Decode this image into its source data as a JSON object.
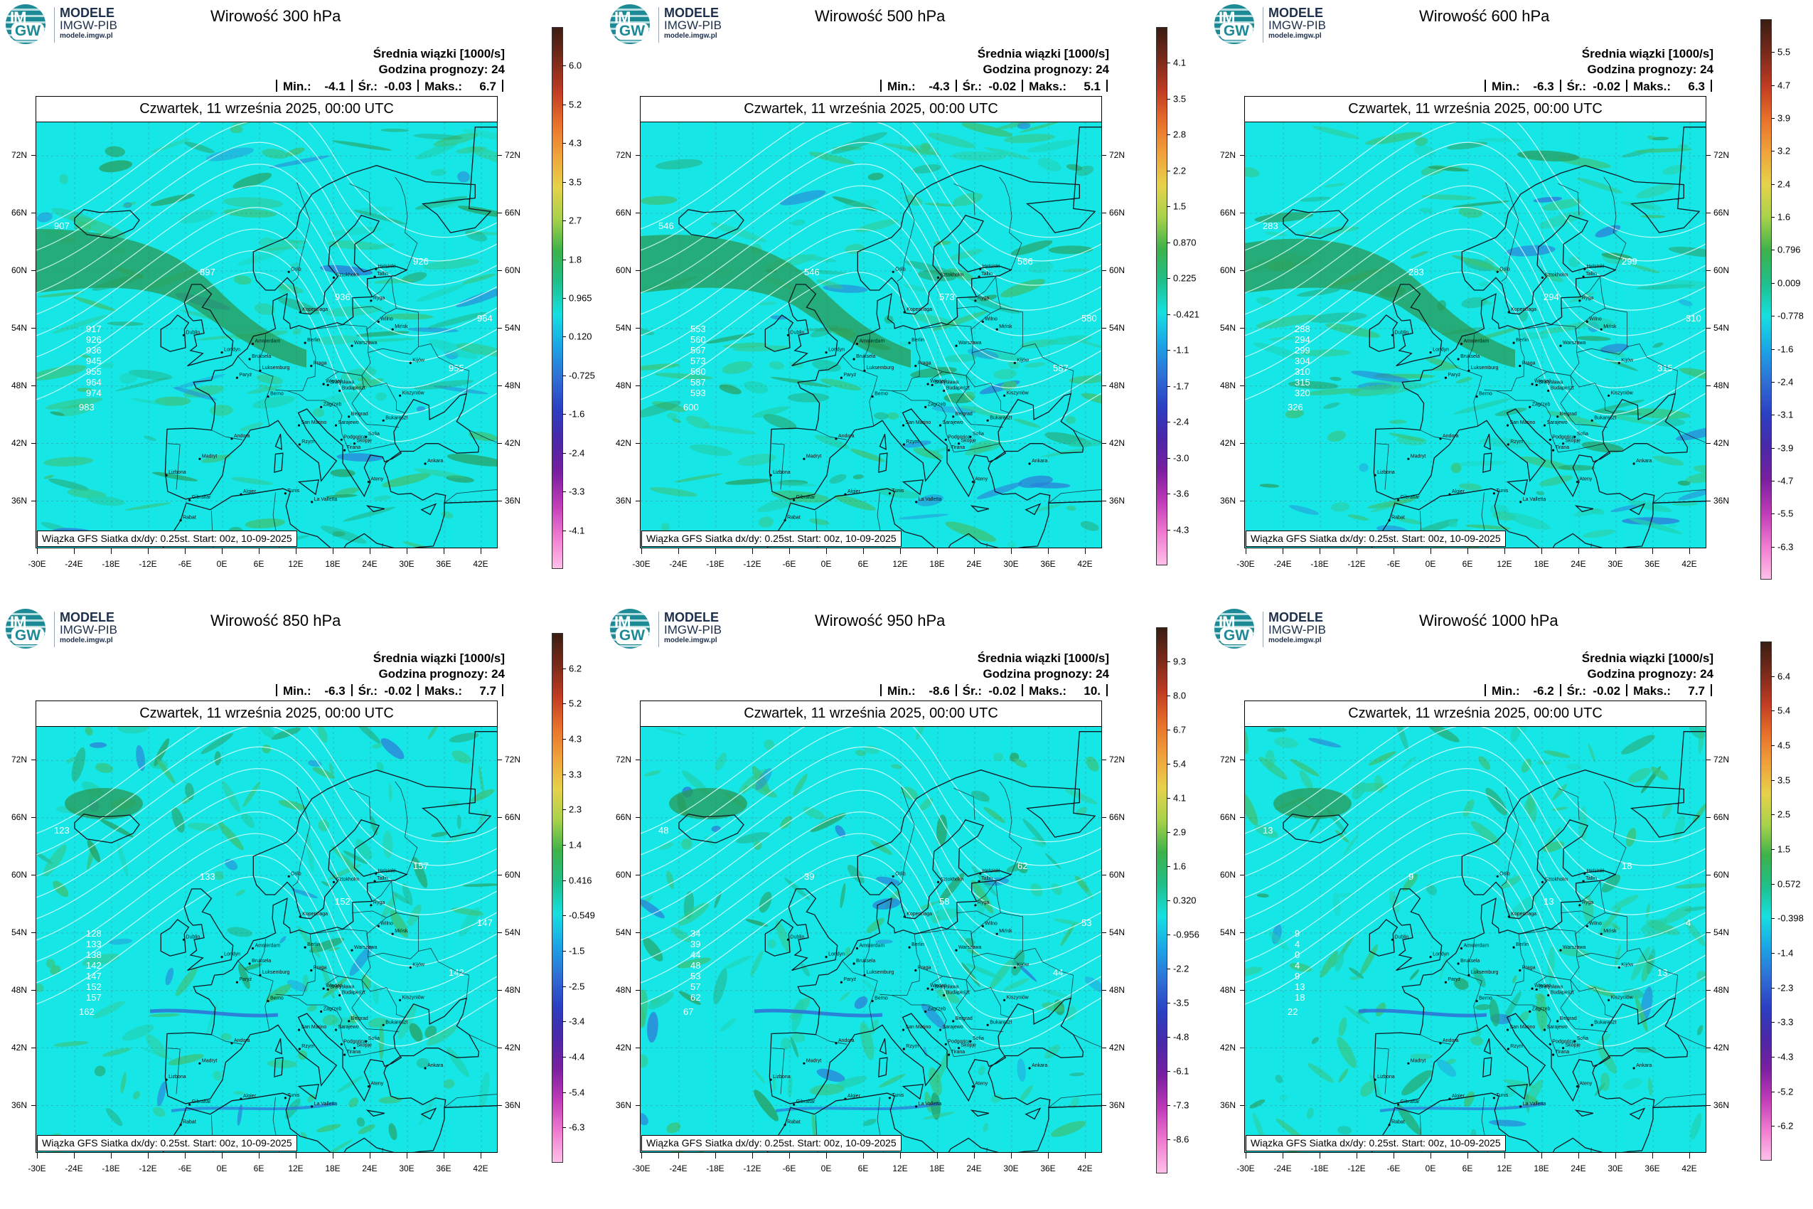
{
  "logo": {
    "mark_top": "IM",
    "mark_bottom": "GW",
    "line1": "MODELE",
    "line2": "IMGW-PIB",
    "line3": "modele.imgw.pl"
  },
  "common": {
    "avg_label": "Średnia wiązki [1000/s]",
    "hour_label": "Godzina prognozy: 24",
    "min_label": "Min.:",
    "mean_label": "Śr.:",
    "max_label": "Maks.:",
    "date": "Czwartek, 11 września 2025, 00:00 UTC",
    "info": "Wiązka GFS Siatka dx/dy: 0.25st. Start: 00z, 10-09-2025",
    "lat_labels": [
      "72N",
      "66N",
      "60N",
      "54N",
      "48N",
      "42N",
      "36N"
    ],
    "lon_labels": [
      "-30E",
      "-24E",
      "-18E",
      "-12E",
      "-6E",
      "0E",
      "6E",
      "12E",
      "18E",
      "24E",
      "30E",
      "36E",
      "42E"
    ]
  },
  "cities": [
    "Oslo",
    "Sztokholm",
    "Helsinki",
    "Tallin",
    "Ryga",
    "Wilno",
    "Mińsk",
    "Kopenhaga",
    "Berlin",
    "Warszawa",
    "Amsterdam",
    "Londyn",
    "Bruksela",
    "Luksemburg",
    "Paryż",
    "Praga",
    "Wiedeń",
    "Bratysława",
    "Budapeszt",
    "Kiszyniów",
    "Kijów",
    "Berno",
    "Zagrzeb",
    "Belgrad",
    "Bukareszt",
    "Sofia",
    "Skopje",
    "Tirana",
    "San Marino",
    "Rzym",
    "Andora",
    "Madryt",
    "Lizbona",
    "Ateny",
    "Ankara",
    "Gibraltar",
    "Algier",
    "Tunis",
    "La Valletta",
    "Rabat",
    "Dublin",
    "Sarajewo",
    "Podgorica"
  ],
  "panels": [
    {
      "title": "Wirowość 300 hPa",
      "min": "-4.1",
      "mean": "-0.03",
      "max": "6.7",
      "colorbar": [
        "6.0",
        "5.2",
        "4.3",
        "3.5",
        "2.7",
        "1.8",
        "0.965",
        "0.120",
        "-0.725",
        "-1.6",
        "-2.4",
        "-3.3",
        "-4.1"
      ],
      "isolines": [
        "907",
        "917",
        "926",
        "936",
        "945",
        "955",
        "964",
        "974",
        "983",
        "897",
        "955",
        "964",
        "936",
        "926"
      ]
    },
    {
      "title": "Wirowość 500 hPa",
      "min": "-4.3",
      "mean": "-0.02",
      "max": "5.1",
      "colorbar": [
        "4.1",
        "3.5",
        "2.8",
        "2.2",
        "1.5",
        "0.870",
        "0.225",
        "-0.421",
        "-1.1",
        "-1.7",
        "-2.4",
        "-3.0",
        "-3.6",
        "-4.3"
      ],
      "isolines": [
        "546",
        "553",
        "560",
        "567",
        "573",
        "580",
        "587",
        "593",
        "600",
        "546",
        "587",
        "580",
        "573",
        "566"
      ]
    },
    {
      "title": "Wirowość 600 hPa",
      "min": "-6.3",
      "mean": "-0.02",
      "max": "6.3",
      "colorbar": [
        "5.5",
        "4.7",
        "3.9",
        "3.2",
        "2.4",
        "1.6",
        "0.796",
        "0.009",
        "-0.778",
        "-1.6",
        "-2.4",
        "-3.1",
        "-3.9",
        "-4.7",
        "-5.5",
        "-6.3"
      ],
      "isolines": [
        "283",
        "288",
        "294",
        "299",
        "304",
        "310",
        "315",
        "320",
        "326",
        "283",
        "315",
        "310",
        "294",
        "299"
      ]
    },
    {
      "title": "Wirowość 850 hPa",
      "min": "-6.3",
      "mean": "-0.02",
      "max": "7.7",
      "colorbar": [
        "6.2",
        "5.2",
        "4.3",
        "3.3",
        "2.3",
        "1.4",
        "0.416",
        "-0.549",
        "-1.5",
        "-2.5",
        "-3.4",
        "-4.4",
        "-5.4",
        "-6.3"
      ],
      "isolines": [
        "123",
        "128",
        "133",
        "138",
        "142",
        "147",
        "152",
        "157",
        "162",
        "133",
        "142",
        "147",
        "152",
        "157"
      ]
    },
    {
      "title": "Wirowość 950 hPa",
      "min": "-8.6",
      "mean": "-0.02",
      "max": "10.",
      "colorbar": [
        "9.3",
        "8.0",
        "6.7",
        "5.4",
        "4.1",
        "2.9",
        "1.6",
        "0.320",
        "-0.956",
        "-2.2",
        "-3.5",
        "-4.8",
        "-6.1",
        "-7.3",
        "-8.6"
      ],
      "isolines": [
        "48",
        "34",
        "39",
        "44",
        "48",
        "53",
        "57",
        "62",
        "67",
        "39",
        "44",
        "53",
        "58",
        "62"
      ]
    },
    {
      "title": "Wirowość 1000 hPa",
      "min": "-6.2",
      "mean": "-0.02",
      "max": "7.7",
      "colorbar": [
        "6.4",
        "5.4",
        "4.5",
        "3.5",
        "2.5",
        "1.5",
        "0.572",
        "-0.398",
        "-1.4",
        "-2.3",
        "-3.3",
        "-4.3",
        "-5.2",
        "-6.2"
      ],
      "isolines": [
        "13",
        "9",
        "4",
        "0",
        "4",
        "9",
        "13",
        "18",
        "22",
        "9",
        "13",
        "4",
        "13",
        "18"
      ]
    }
  ],
  "colors": {
    "map_base": "#17e6e6",
    "map_green": "#3fbf6a",
    "map_darkgreen": "#2a9a55",
    "map_blue": "#2f6fd6",
    "colorbar_stops": [
      "#3a1d12",
      "#7a2a1a",
      "#c03b22",
      "#e8702a",
      "#f0a23a",
      "#e6d24a",
      "#a8d24a",
      "#3db24a",
      "#1fbf8a",
      "#15e0e0",
      "#1aa6e6",
      "#2f6fd6",
      "#2b3fc2",
      "#4a27a8",
      "#7a1fa0",
      "#c03bb8",
      "#f07ad0",
      "#ffc0e8"
    ]
  }
}
